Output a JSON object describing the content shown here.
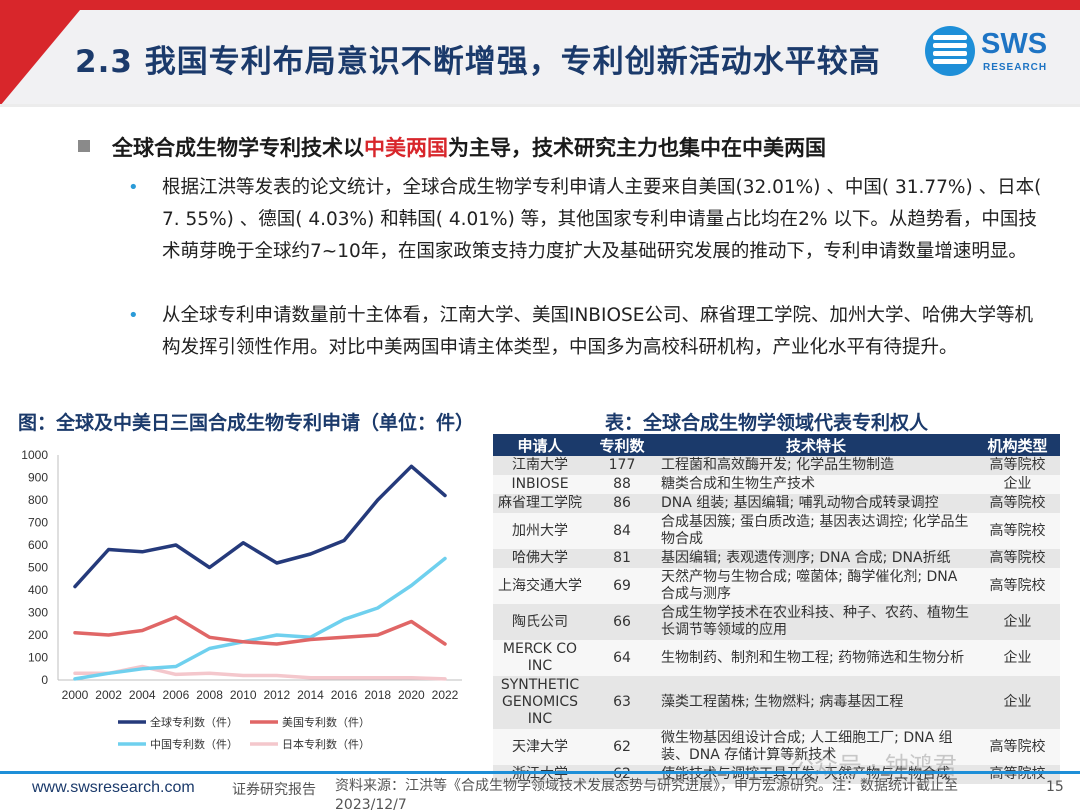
{
  "header": {
    "title": "2.3 我国专利布局意识不断增强，专利创新活动水平较高",
    "logo_text": "SWS",
    "logo_sub": "RESEARCH"
  },
  "main_bullet": {
    "pre": "全球合成生物学专利技术以",
    "highlight": "中美两国",
    "post": "为主导，技术研究主力也集中在中美两国"
  },
  "sub_bullets": [
    "根据江洪等发表的论文统计，全球合成生物学专利申请人主要来自美国(32.01%) 、中国( 31.77%) 、日本( 7. 55%) 、德国( 4.03%) 和韩国( 4.01%) 等，其他国家专利申请量占比均在2% 以下。从趋势看，中国技术萌芽晚于全球约7~10年，在国家政策支持力度扩大及基础研究发展的推动下，专利申请数量增速明显。",
    "从全球专利申请数量前十主体看，江南大学、美国INBIOSE公司、麻省理工学院、加州大学、哈佛大学等机构发挥引领性作用。对比中美两国申请主体类型，中国多为高校科研机构，产业化水平有待提升。"
  ],
  "chart_caption": "图：全球及中美日三国合成生物专利申请（单位：件）",
  "table_caption": "表：全球合成生物学领域代表专利权人",
  "chart_data": {
    "type": "line",
    "title": "全球及中美日三国合成生物专利申请（单位：件）",
    "x": [
      2000,
      2002,
      2004,
      2006,
      2008,
      2010,
      2012,
      2014,
      2016,
      2018,
      2020,
      2022
    ],
    "x_ticks": [
      "2000",
      "2002",
      "2004",
      "2006",
      "2008",
      "2010",
      "2012",
      "2014",
      "2016",
      "2018",
      "2020",
      "2022"
    ],
    "ylim": [
      0,
      1000
    ],
    "y_ticks": [
      "0",
      "100",
      "200",
      "300",
      "400",
      "500",
      "600",
      "700",
      "800",
      "900",
      "1000"
    ],
    "grid": false,
    "legend_position": "bottom",
    "series": [
      {
        "name": "全球专利数（件）",
        "color": "#253a7b",
        "values": [
          415,
          580,
          570,
          600,
          500,
          610,
          520,
          560,
          620,
          800,
          950,
          820
        ]
      },
      {
        "name": "美国专利数（件）",
        "color": "#e06666",
        "values": [
          210,
          200,
          220,
          280,
          190,
          170,
          160,
          180,
          190,
          200,
          260,
          160
        ]
      },
      {
        "name": "中国专利数（件）",
        "color": "#6fd0ee",
        "values": [
          5,
          30,
          50,
          60,
          140,
          170,
          200,
          190,
          270,
          320,
          420,
          540
        ]
      },
      {
        "name": "日本专利数（件）",
        "color": "#f4c7cc",
        "values": [
          30,
          30,
          60,
          25,
          30,
          20,
          20,
          10,
          10,
          10,
          10,
          5
        ]
      }
    ]
  },
  "table": {
    "headers": [
      "申请人",
      "专利数",
      "技术特长",
      "机构类型"
    ],
    "rows": [
      {
        "name": "江南大学",
        "count": "177",
        "spec": "工程菌和高效酶开发; 化学品生物制造",
        "type": "高等院校"
      },
      {
        "name": "INBIOSE",
        "count": "88",
        "spec": "糖类合成和生物生产技术",
        "type": "企业"
      },
      {
        "name": "麻省理工学院",
        "count": "86",
        "spec": "DNA 组装; 基因编辑; 哺乳动物合成转录调控",
        "type": "高等院校"
      },
      {
        "name": "加州大学",
        "count": "84",
        "spec": "合成基因簇; 蛋白质改造; 基因表达调控; 化学品生物合成",
        "type": "高等院校"
      },
      {
        "name": "哈佛大学",
        "count": "81",
        "spec": "基因编辑; 表观遗传测序; DNA 合成; DNA折纸",
        "type": "高等院校"
      },
      {
        "name": "上海交通大学",
        "count": "69",
        "spec": "天然产物与生物合成; 噬菌体; 酶学催化剂; DNA 合成与测序",
        "type": "高等院校"
      },
      {
        "name": "陶氏公司",
        "count": "66",
        "spec": "合成生物学技术在农业科技、种子、农药、植物生长调节等领域的应用",
        "type": "企业"
      },
      {
        "name": "MERCK CO INC",
        "count": "64",
        "spec": "生物制药、制剂和生物工程; 药物筛选和生物分析",
        "type": "企业"
      },
      {
        "name": "SYNTHETIC GENOMICS INC",
        "count": "63",
        "spec": "藻类工程菌株; 生物燃料; 病毒基因工程",
        "type": "企业"
      },
      {
        "name": "天津大学",
        "count": "62",
        "spec": "微生物基因组设计合成; 人工细胞工厂; DNA 组装、DNA 存储计算等新技术",
        "type": "高等院校"
      },
      {
        "name": "浙江大学",
        "count": "62",
        "spec": "使能技术与调控工具开发; 天然产物与生物合成",
        "type": "高等院校"
      }
    ]
  },
  "footer": {
    "url": "www.swsresearch.com",
    "label": "证券研究报告",
    "source": "资料来源：江洪等《合成生物学领域技术发展态势与研究进展》，申万宏源研究。注：数据统计截止至 2023/12/7",
    "page": "15",
    "watermark": "公众号 · 钟鸿君"
  }
}
